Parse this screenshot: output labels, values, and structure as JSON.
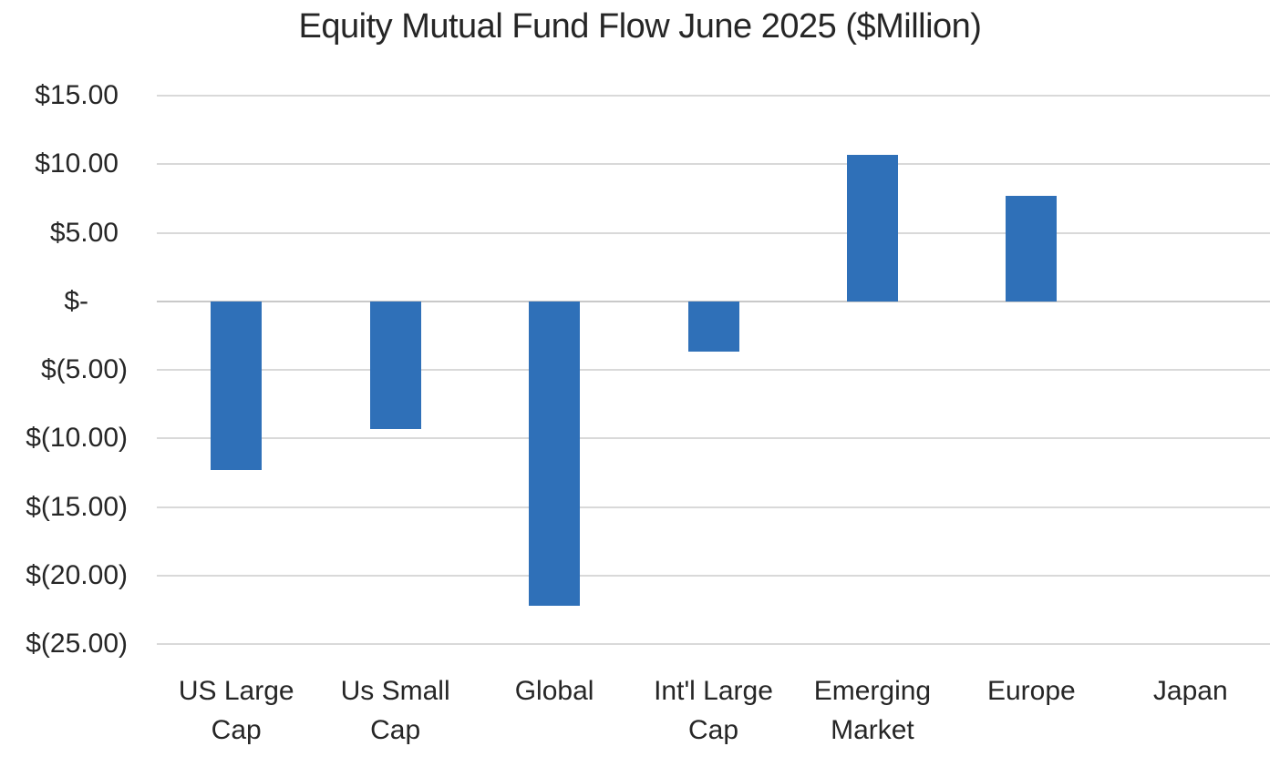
{
  "chart_data": {
    "type": "bar",
    "title": "Equity Mutual Fund Flow June 2025 ($Million)",
    "categories": [
      "US Large Cap",
      "Us Small Cap",
      "Global",
      "Int'l Large Cap",
      "Emerging Market",
      "Europe",
      "Japan"
    ],
    "values": [
      -12.3,
      -9.3,
      -22.2,
      -3.7,
      10.7,
      7.7,
      0
    ],
    "xlabel": "",
    "ylabel": "",
    "ylim": [
      -25,
      15
    ],
    "y_axis": {
      "tick_values": [
        15,
        10,
        5,
        0,
        -5,
        -10,
        -15,
        -20,
        -25
      ],
      "tick_labels": [
        "$15.00",
        "$10.00",
        "$5.00",
        "$-",
        "$(5.00)",
        "$(10.00)",
        "$(15.00)",
        "$(20.00)",
        "$(25.00)"
      ]
    },
    "grid": true,
    "legend": "none",
    "colors": {
      "bar": "#2F70B8",
      "gridline": "#D9D9D9",
      "zero_axis_line": "#C9C9C9",
      "text": "#262626",
      "background": "#FFFFFF"
    }
  }
}
